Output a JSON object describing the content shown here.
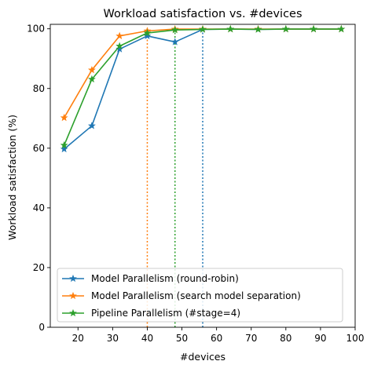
{
  "chart_data": {
    "type": "line",
    "title": "Workload satisfaction vs. #devices",
    "xlabel": "#devices",
    "ylabel": "Workload satisfaction (%)",
    "xlim": [
      12,
      100
    ],
    "ylim": [
      0,
      101.5
    ],
    "xticks": [
      20,
      30,
      40,
      50,
      60,
      70,
      80,
      90,
      100
    ],
    "yticks": [
      0,
      20,
      40,
      60,
      80,
      100
    ],
    "grid": false,
    "legend_position": "lower-left",
    "marker": "star",
    "x": [
      16,
      24,
      32,
      40,
      48,
      56,
      64,
      72,
      80,
      88,
      96
    ],
    "series": [
      {
        "name": "Model Parallelism (round-robin)",
        "color": "#1f77b4",
        "values": [
          59.7,
          67.5,
          93.2,
          97.6,
          95.6,
          99.8,
          99.9,
          99.8,
          99.9,
          99.9,
          99.9
        ],
        "threshold_x": 56
      },
      {
        "name": "Model Parallelism (search model separation)",
        "color": "#ff7f0e",
        "values": [
          70.2,
          86.2,
          97.6,
          99.3,
          99.9,
          99.9,
          99.9,
          99.9,
          99.9,
          99.9,
          99.9
        ],
        "threshold_x": 40
      },
      {
        "name": "Pipeline Parallelism (#stage=4)",
        "color": "#2ca02c",
        "values": [
          61.0,
          83.1,
          94.2,
          98.6,
          99.6,
          99.8,
          99.9,
          99.8,
          99.9,
          99.9,
          99.9
        ],
        "threshold_x": 48
      }
    ]
  }
}
